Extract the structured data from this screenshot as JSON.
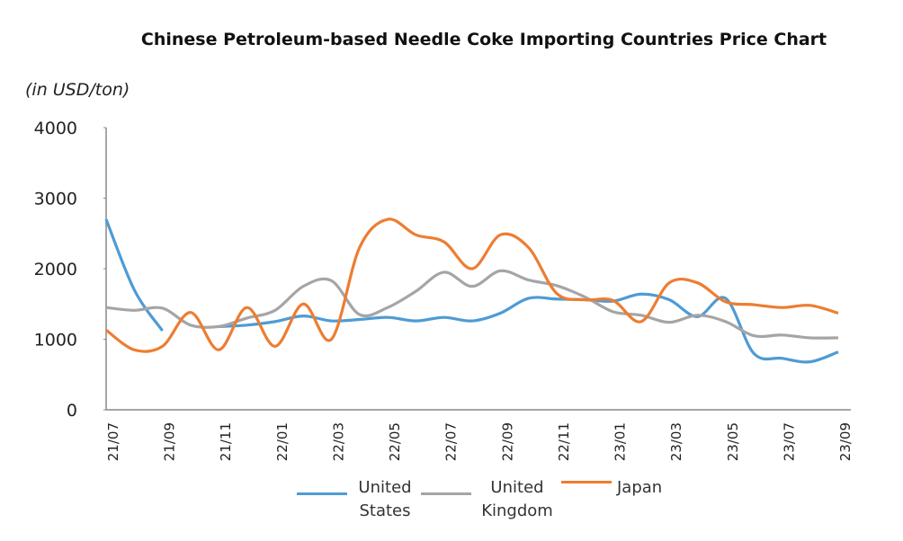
{
  "chart_data": {
    "type": "line",
    "title": "Chinese Petroleum-based Needle Coke Importing Countries Price Chart",
    "y_axis_label": "(in USD/ton)",
    "categories": [
      "21/07",
      null,
      "21/09",
      null,
      "21/11",
      null,
      "22/01",
      null,
      "22/03",
      null,
      "22/05",
      null,
      "22/07",
      null,
      "22/09",
      null,
      "22/11",
      null,
      "23/01",
      null,
      "23/03",
      null,
      "23/05",
      null,
      "23/07",
      null,
      "23/09"
    ],
    "series": [
      {
        "name": "United States",
        "color": "#4e9bd5",
        "values": [
          2700,
          1700,
          1120,
          null,
          1180,
          1200,
          1250,
          1330,
          1260,
          1280,
          1310,
          1260,
          1310,
          1260,
          1370,
          1580,
          1570,
          1560,
          1540,
          1640,
          1560,
          1320,
          1580,
          800,
          730,
          680,
          820
        ]
      },
      {
        "name": "United Kingdom",
        "color": "#a5a5a5",
        "values": [
          1450,
          1410,
          1440,
          1200,
          1180,
          1300,
          1410,
          1750,
          1830,
          1350,
          1450,
          1680,
          1950,
          1750,
          1970,
          1840,
          1760,
          1600,
          1390,
          1340,
          1240,
          1340,
          1250,
          1050,
          1060,
          1020,
          1020
        ]
      },
      {
        "name": "Japan",
        "color": "#ed7d31",
        "values": [
          1130,
          850,
          900,
          1380,
          850,
          1450,
          900,
          1500,
          1000,
          2300,
          2700,
          2480,
          2380,
          2000,
          2480,
          2300,
          1650,
          1560,
          1550,
          1250,
          1800,
          1800,
          1530,
          1490,
          1450,
          1480,
          1370
        ]
      }
    ],
    "ylim": [
      0,
      4000
    ],
    "yticks": [
      0,
      1000,
      2000,
      3000,
      4000
    ],
    "grid": false
  }
}
